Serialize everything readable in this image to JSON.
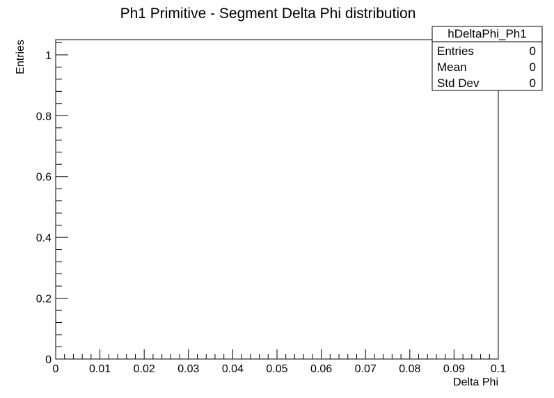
{
  "chart_data": {
    "type": "bar",
    "title": "Ph1 Primitive - Segment Delta Phi distribution",
    "xlabel": "Delta Phi",
    "ylabel": "Entries",
    "xlim": [
      0,
      0.1
    ],
    "ylim": [
      0,
      1.05
    ],
    "x_ticks": [
      0,
      0.01,
      0.02,
      0.03,
      0.04,
      0.05,
      0.06,
      0.07,
      0.08,
      0.09,
      0.1
    ],
    "x_tick_labels": [
      "0",
      "0.01",
      "0.02",
      "0.03",
      "0.04",
      "0.05",
      "0.06",
      "0.07",
      "0.08",
      "0.09",
      "0.1"
    ],
    "y_ticks": [
      0,
      0.2,
      0.4,
      0.6,
      0.8,
      1
    ],
    "y_tick_labels": [
      "0",
      "0.2",
      "0.4",
      "0.6",
      "0.8",
      "1"
    ],
    "x_minor_per_major": 5,
    "y_minor_per_major": 5,
    "grid": false,
    "series": [],
    "stats_box": {
      "placement": "top-right",
      "name": "hDeltaPhi_Ph1",
      "rows": [
        {
          "label": "Entries",
          "value": "0"
        },
        {
          "label": "Mean",
          "value": "0"
        },
        {
          "label": "Std Dev",
          "value": "0"
        }
      ]
    }
  }
}
